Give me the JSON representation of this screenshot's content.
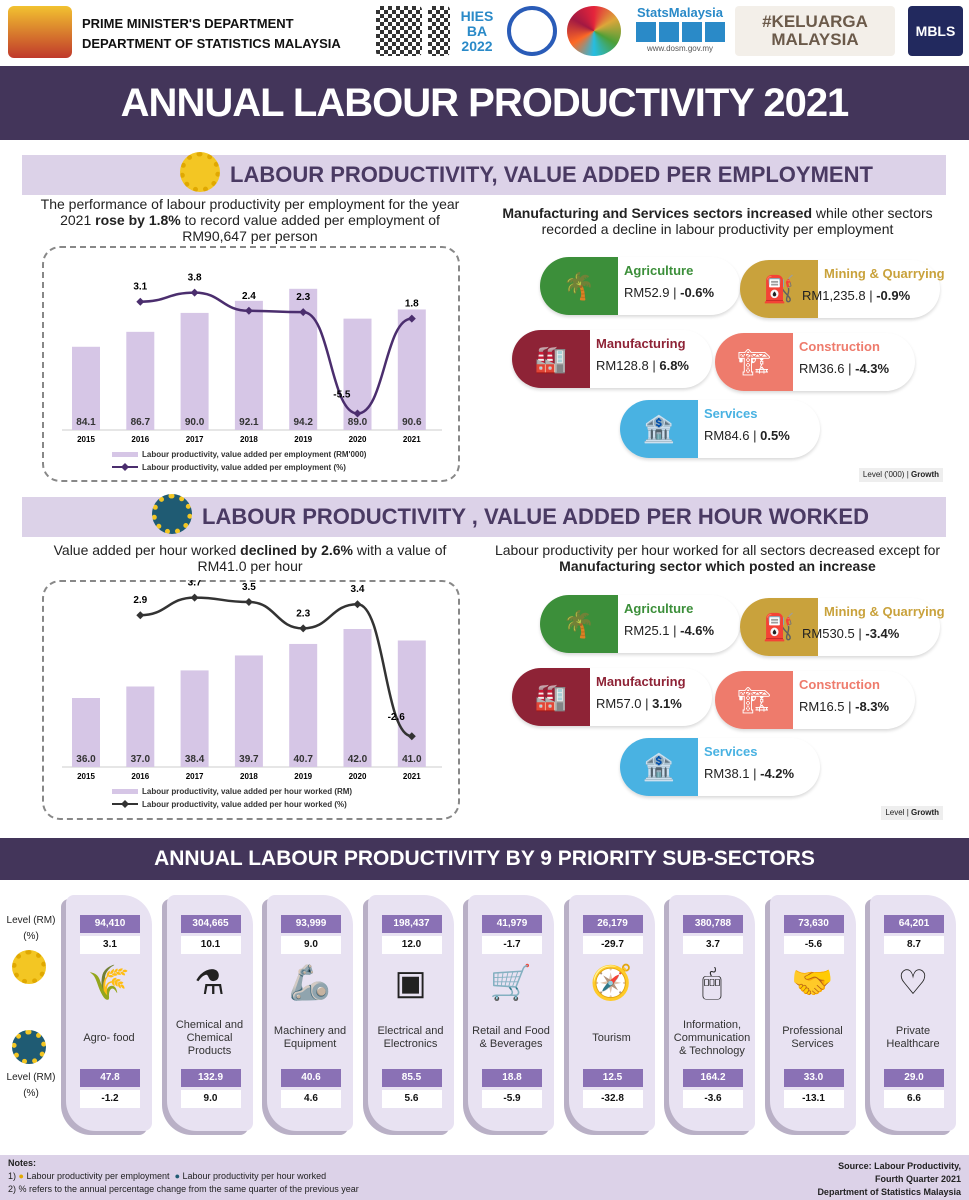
{
  "header": {
    "line1": "PRIME MINISTER'S DEPARTMENT",
    "line2": "DEPARTMENT OF STATISTICS MALAYSIA",
    "logos": [
      "HIES BA 2022",
      "Sustainable Development Goals",
      "StatsMalaysia",
      "www.dosm.gov.my",
      "#KELUARGA MALAYSIA",
      "MBLS"
    ]
  },
  "title": "ANNUAL LABOUR PRODUCTIVITY 2021",
  "colors": {
    "banner": "#43355a",
    "section": "#dcd2e8",
    "bar": "#d6c6e6",
    "line": "#4b2e6e",
    "agriculture": "#3c8f3a",
    "mining": "#c9a23c",
    "manufacturing": "#8e2336",
    "construction": "#ee7b6c",
    "services": "#49b2e2"
  },
  "sec1": {
    "title": "LABOUR PRODUCTIVITY, VALUE ADDED PER EMPLOYMENT",
    "intro_a": "The performance of labour productivity per employment for the year 2021 ",
    "intro_b": "rose by 1.8%",
    "intro_c": " to record value added per employment of RM90,647 per person",
    "right_a": "Manufacturing and Services sectors increased",
    "right_b": " while other sectors recorded a decline in labour productivity per employment",
    "sectors": [
      {
        "name": "Agriculture",
        "value": "RM52.9 | ",
        "growth": "-0.6%"
      },
      {
        "name": "Mining & Quarrying",
        "value": "RM1,235.8 | ",
        "growth": "-0.9%"
      },
      {
        "name": "Manufacturing",
        "value": "RM128.8 | ",
        "growth": "6.8%"
      },
      {
        "name": "Construction",
        "value": "RM36.6 | ",
        "growth": "-4.3%"
      },
      {
        "name": "Services",
        "value": "RM84.6 | ",
        "growth": "0.5%"
      }
    ],
    "level_note": "Level ('000) | ",
    "level_bold": "Growth"
  },
  "sec2": {
    "title": "LABOUR PRODUCTIVITY , VALUE ADDED PER HOUR WORKED",
    "intro_a": "Value added per hour worked ",
    "intro_b": "declined by 2.6%",
    "intro_c": " with a value of RM41.0 per hour",
    "right_a": "Labour productivity per hour worked for all sectors decreased except for ",
    "right_b": "Manufacturing sector which posted an increase",
    "sectors": [
      {
        "name": "Agriculture",
        "value": "RM25.1 | ",
        "growth": "-4.6%"
      },
      {
        "name": "Mining & Quarrying",
        "value": "RM530.5 | ",
        "growth": "-3.4%"
      },
      {
        "name": "Manufacturing",
        "value": "RM57.0 | ",
        "growth": "3.1%"
      },
      {
        "name": "Construction",
        "value": "RM16.5 | ",
        "growth": "-8.3%"
      },
      {
        "name": "Services",
        "value": "RM38.1 | ",
        "growth": "-4.2%"
      }
    ],
    "level_note": "Level | ",
    "level_bold": "Growth"
  },
  "chart_data": [
    {
      "type": "bar+line",
      "categories": [
        "2015",
        "2016",
        "2017",
        "2018",
        "2019",
        "2020",
        "2021"
      ],
      "series": [
        {
          "name": "Labour productivity, value added per employment (RM'000)",
          "type": "bar",
          "values": [
            84.1,
            86.7,
            90.0,
            92.1,
            94.2,
            89.0,
            90.6
          ]
        },
        {
          "name": "Labour productivity, value added per employment (%)",
          "type": "line",
          "values": [
            null,
            3.1,
            3.8,
            2.4,
            2.3,
            -5.5,
            1.8
          ]
        }
      ],
      "legend": "bottom"
    },
    {
      "type": "bar+line",
      "categories": [
        "2015",
        "2016",
        "2017",
        "2018",
        "2019",
        "2020",
        "2021"
      ],
      "series": [
        {
          "name": "Labour productivity, value added per hour worked (RM)",
          "type": "bar",
          "values": [
            36.0,
            37.0,
            38.4,
            39.7,
            40.7,
            42.0,
            41.0
          ]
        },
        {
          "name": "Labour productivity, value added per hour worked (%)",
          "type": "line",
          "values": [
            null,
            2.9,
            3.7,
            3.5,
            2.3,
            3.4,
            -2.6
          ]
        }
      ],
      "legend": "bottom"
    }
  ],
  "sec3": {
    "title": "ANNUAL LABOUR PRODUCTIVITY BY 9 PRIORITY SUB-SECTORS",
    "level_label": "Level (RM)",
    "pct_label": "(%)",
    "subsectors": [
      {
        "name": "Agro- food",
        "icon": "wheat-icon",
        "emp_level": "94,410",
        "emp_pct": "3.1",
        "hr_level": "47.8",
        "hr_pct": "-1.2"
      },
      {
        "name": "Chemical and Chemical Products",
        "icon": "flask-icon",
        "emp_level": "304,665",
        "emp_pct": "10.1",
        "hr_level": "132.9",
        "hr_pct": "9.0"
      },
      {
        "name": "Machinery and Equipment",
        "icon": "robot-arm-icon",
        "emp_level": "93,999",
        "emp_pct": "9.0",
        "hr_level": "40.6",
        "hr_pct": "4.6"
      },
      {
        "name": "Electrical and Electronics",
        "icon": "chip-icon",
        "emp_level": "198,437",
        "emp_pct": "12.0",
        "hr_level": "85.5",
        "hr_pct": "5.6"
      },
      {
        "name": "Retail and Food & Beverages",
        "icon": "cart-icon",
        "emp_level": "41,979",
        "emp_pct": "-1.7",
        "hr_level": "18.8",
        "hr_pct": "-5.9"
      },
      {
        "name": "Tourism",
        "icon": "compass-icon",
        "emp_level": "26,179",
        "emp_pct": "-29.7",
        "hr_level": "12.5",
        "hr_pct": "-32.8"
      },
      {
        "name": "Information, Communication & Technology",
        "icon": "mouse-icon",
        "emp_level": "380,788",
        "emp_pct": "3.7",
        "hr_level": "164.2",
        "hr_pct": "-3.6"
      },
      {
        "name": "Professional Services",
        "icon": "handshake-icon",
        "emp_level": "73,630",
        "emp_pct": "-5.6",
        "hr_level": "33.0",
        "hr_pct": "-13.1"
      },
      {
        "name": "Private Healthcare",
        "icon": "heart-icon",
        "emp_level": "64,201",
        "emp_pct": "8.7",
        "hr_level": "29.0",
        "hr_pct": "6.6"
      }
    ]
  },
  "notes": {
    "title": "Notes:",
    "n1a": "1)",
    "n1b": "Labour productivity per employment",
    "n1c": "Labour productivity per hour worked",
    "n2": "2) % refers to the annual percentage change from the same quarter of the previous year",
    "src1": "Source: Labour Productivity,",
    "src2": "Fourth Quarter 2021",
    "src3": "Department of Statistics Malaysia"
  }
}
